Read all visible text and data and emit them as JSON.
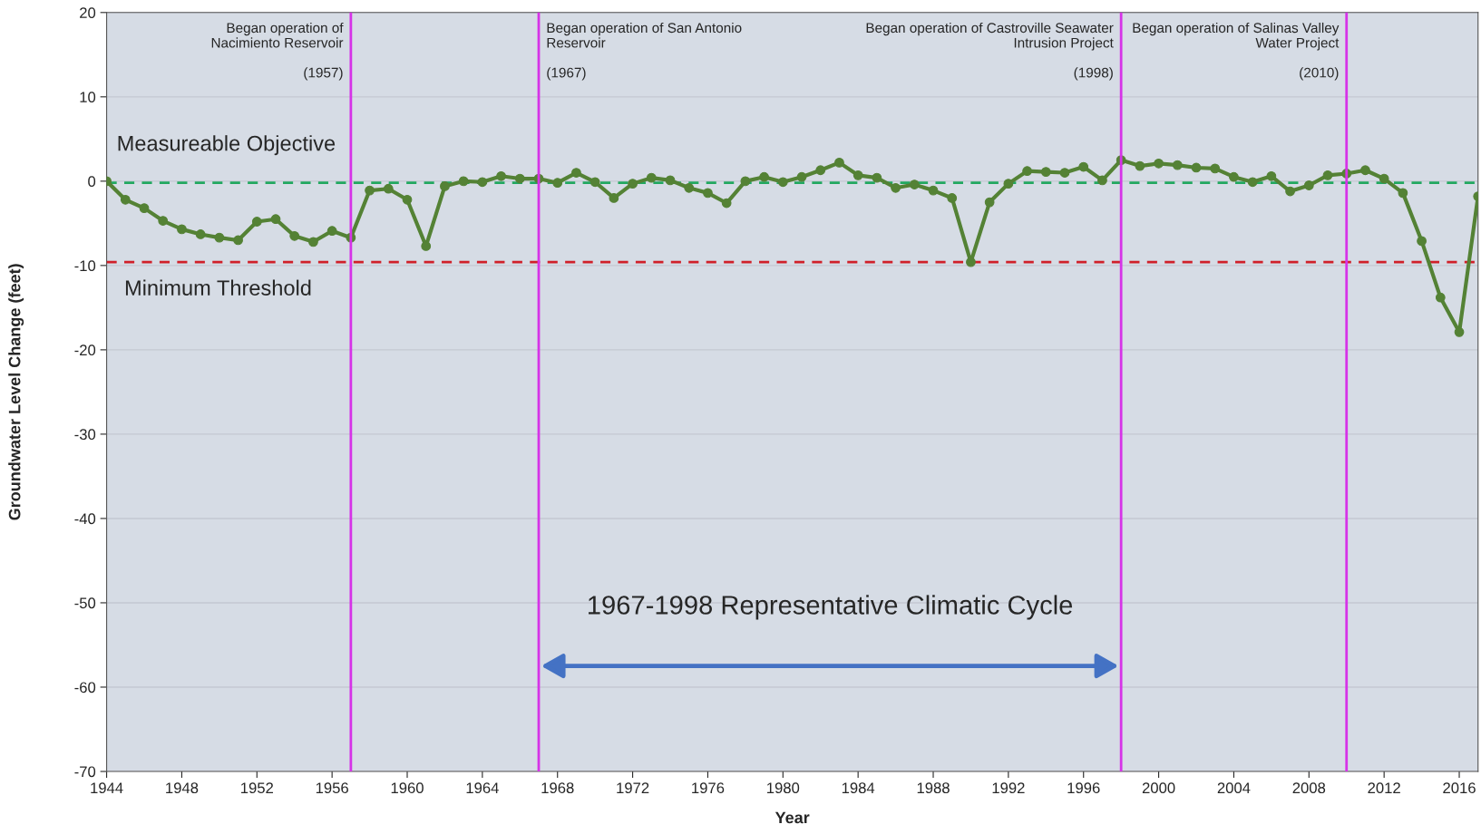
{
  "chart_data": {
    "type": "line",
    "xlabel": "Year",
    "ylabel": "Groundwater Level Change (feet)",
    "x": [
      1944,
      1945,
      1946,
      1947,
      1948,
      1949,
      1950,
      1951,
      1952,
      1953,
      1954,
      1955,
      1956,
      1957,
      1958,
      1959,
      1960,
      1961,
      1962,
      1963,
      1964,
      1965,
      1966,
      1967,
      1968,
      1969,
      1970,
      1971,
      1972,
      1973,
      1974,
      1975,
      1976,
      1977,
      1978,
      1979,
      1980,
      1981,
      1982,
      1983,
      1984,
      1985,
      1986,
      1987,
      1988,
      1989,
      1990,
      1991,
      1992,
      1993,
      1994,
      1995,
      1996,
      1997,
      1998,
      1999,
      2000,
      2001,
      2002,
      2003,
      2004,
      2005,
      2006,
      2007,
      2008,
      2009,
      2010,
      2011,
      2012,
      2013,
      2014,
      2015,
      2016,
      2017
    ],
    "series": [
      {
        "color": "#548235",
        "values": [
          0,
          -2.2,
          -3.2,
          -4.7,
          -5.7,
          -6.3,
          -6.7,
          -7.0,
          -4.8,
          -4.5,
          -6.5,
          -7.2,
          -5.9,
          -6.7,
          -1.1,
          -0.9,
          -2.2,
          -7.7,
          -0.6,
          0,
          -0.1,
          0.6,
          0.3,
          0.3,
          -0.2,
          1.0,
          -0.1,
          -2.0,
          -0.3,
          0.4,
          0.1,
          -0.8,
          -1.4,
          -2.6,
          0,
          0.5,
          -0.1,
          0.5,
          1.3,
          2.2,
          0.7,
          0.4,
          -0.8,
          -0.4,
          -1.1,
          -2.0,
          -9.6,
          -2.5,
          -0.3,
          1.2,
          1.1,
          1.0,
          1.7,
          0.1,
          2.5,
          1.8,
          2.1,
          1.9,
          1.6,
          1.5,
          0.5,
          -0.1,
          0.6,
          -1.2,
          -0.5,
          0.7,
          0.9,
          1.3,
          0.3,
          -1.4,
          -7.1,
          -13.8,
          -17.9,
          -1.8
        ]
      }
    ],
    "marker": "circle",
    "line_style": "solid",
    "xlim": [
      1944,
      2017
    ],
    "xticks": [
      1944,
      1948,
      1952,
      1956,
      1960,
      1964,
      1968,
      1972,
      1976,
      1980,
      1984,
      1988,
      1992,
      1996,
      2000,
      2004,
      2008,
      2012,
      2016
    ],
    "ylim": [
      -70,
      20
    ],
    "yticks": [
      -70,
      -60,
      -50,
      -40,
      -30,
      -20,
      -10,
      0,
      10,
      20
    ],
    "grid": "y",
    "ref_lines": [
      {
        "axis": "y",
        "value": -0.2,
        "label": "Measureable Objective",
        "color": "#22a860",
        "line_style": "dashed"
      },
      {
        "axis": "y",
        "value": -9.6,
        "label": "Minimum Threshold",
        "color": "#d0202a",
        "line_style": "dashed"
      },
      {
        "axis": "x",
        "value": 1957,
        "label": "Began operation of\nNacimiento Reservoir\n\n(1957)",
        "color": "#d633e8",
        "line_style": "solid"
      },
      {
        "axis": "x",
        "value": 1967,
        "label": "Began operation of San Antonio\nReservoir\n\n(1967)",
        "color": "#d633e8",
        "line_style": "solid"
      },
      {
        "axis": "x",
        "value": 1998,
        "label": "Began operation of Castroville Seawater\nIntrusion Project\n\n(1998)",
        "color": "#d633e8",
        "line_style": "solid"
      },
      {
        "axis": "x",
        "value": 2010,
        "label": "Began operation of Salinas Valley\nWater Project\n\n(2010)",
        "color": "#d633e8",
        "line_style": "solid"
      }
    ],
    "annotations": [
      "1967-1998 Representative Climatic Cycle"
    ]
  }
}
